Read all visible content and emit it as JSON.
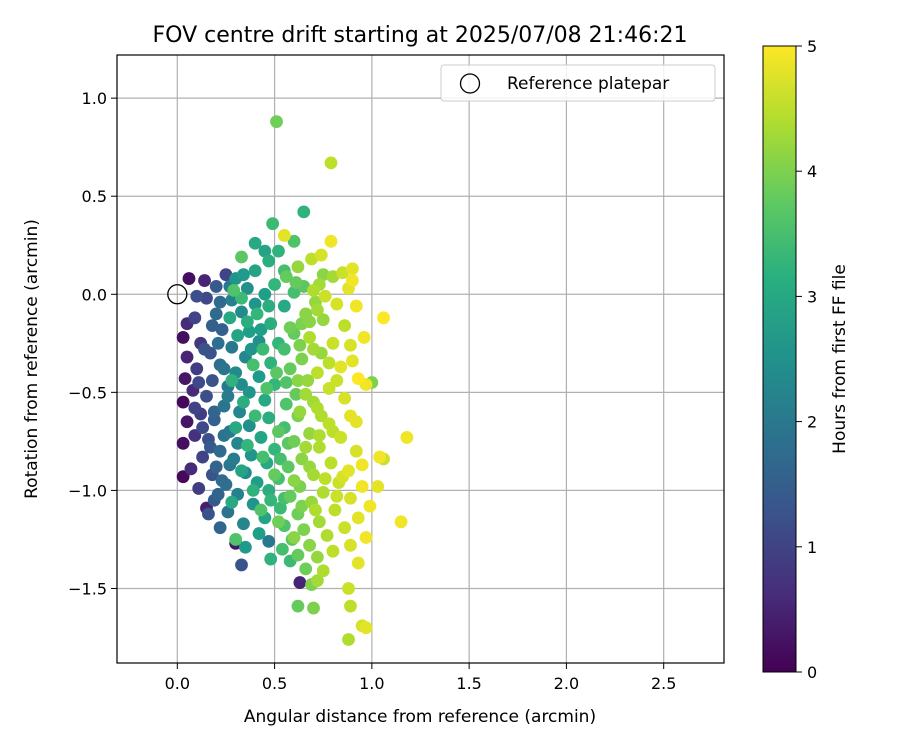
{
  "chart_data": {
    "type": "scatter",
    "title": "FOV centre drift starting at 2025/07/08 21:46:21",
    "xlabel": "Angular distance from reference (arcmin)",
    "ylabel": "Rotation from reference (arcmin)",
    "xlim": [
      -0.31,
      2.81
    ],
    "ylim": [
      -1.88,
      1.22
    ],
    "xticks": [
      0.0,
      0.5,
      1.0,
      1.5,
      2.0,
      2.5
    ],
    "xtick_labels": [
      "0.0",
      "0.5",
      "1.0",
      "1.5",
      "2.0",
      "2.5"
    ],
    "yticks": [
      -1.5,
      -1.0,
      -0.5,
      0.0,
      0.5,
      1.0
    ],
    "ytick_labels": [
      "−1.5",
      "−1.0",
      "−0.5",
      "0.0",
      "0.5",
      "1.0"
    ],
    "grid": true,
    "colormap": "viridis",
    "colorbar": {
      "label": "Hours from first FF file",
      "range": [
        0,
        5
      ],
      "ticks": [
        0,
        1,
        2,
        3,
        4,
        5
      ],
      "tick_labels": [
        "0",
        "1",
        "2",
        "3",
        "4",
        "5"
      ]
    },
    "legend": {
      "position": "top-right",
      "entries": [
        {
          "label": "Reference platepar",
          "marker": "open-circle"
        }
      ]
    },
    "reference_point": {
      "x": 0.0,
      "y": 0.0
    },
    "points_xyc": [
      [
        0.51,
        0.88,
        3.9
      ],
      [
        0.79,
        0.67,
        4.5
      ],
      [
        0.65,
        0.42,
        3.2
      ],
      [
        0.49,
        0.36,
        3.4
      ],
      [
        0.55,
        0.3,
        4.8
      ],
      [
        0.6,
        0.27,
        3.6
      ],
      [
        0.4,
        0.26,
        3.0
      ],
      [
        0.79,
        0.27,
        4.9
      ],
      [
        0.45,
        0.22,
        2.9
      ],
      [
        0.52,
        0.22,
        3.2
      ],
      [
        0.74,
        0.2,
        4.7
      ],
      [
        0.69,
        0.18,
        4.5
      ],
      [
        0.33,
        0.19,
        3.7
      ],
      [
        0.62,
        0.14,
        4.2
      ],
      [
        0.9,
        0.13,
        4.8
      ],
      [
        0.85,
        0.11,
        4.6
      ],
      [
        0.75,
        0.1,
        4.1
      ],
      [
        0.8,
        0.09,
        4.3
      ],
      [
        0.3,
        0.08,
        2.6
      ],
      [
        0.56,
        0.09,
        3.8
      ],
      [
        0.25,
        0.1,
        1.0
      ],
      [
        0.06,
        0.08,
        0.2
      ],
      [
        0.14,
        0.07,
        0.5
      ],
      [
        0.9,
        0.07,
        4.9
      ],
      [
        0.65,
        0.04,
        3.7
      ],
      [
        0.88,
        0.03,
        4.8
      ],
      [
        0.5,
        0.05,
        3.3
      ],
      [
        0.7,
        0.02,
        4.4
      ],
      [
        0.36,
        0.03,
        2.5
      ],
      [
        0.2,
        0.04,
        1.4
      ],
      [
        0.45,
        0.0,
        2.8
      ],
      [
        0.6,
        0.01,
        3.5
      ],
      [
        0.76,
        -0.01,
        4.6
      ],
      [
        0.1,
        -0.01,
        1.2
      ],
      [
        0.15,
        -0.02,
        1.1
      ],
      [
        0.82,
        -0.05,
        4.7
      ],
      [
        0.28,
        -0.03,
        2.2
      ],
      [
        0.4,
        -0.05,
        2.6
      ],
      [
        0.55,
        -0.06,
        3.0
      ],
      [
        0.92,
        -0.06,
        4.9
      ],
      [
        0.72,
        -0.08,
        4.3
      ],
      [
        0.66,
        -0.1,
        4.1
      ],
      [
        0.33,
        -0.09,
        2.4
      ],
      [
        0.2,
        -0.1,
        1.7
      ],
      [
        0.09,
        -0.12,
        1.0
      ],
      [
        0.05,
        -0.15,
        0.6
      ],
      [
        0.75,
        -0.13,
        4.2
      ],
      [
        1.06,
        -0.12,
        5.0
      ],
      [
        0.48,
        -0.15,
        3.1
      ],
      [
        0.86,
        -0.16,
        4.5
      ],
      [
        0.23,
        -0.18,
        1.5
      ],
      [
        0.37,
        -0.19,
        2.8
      ],
      [
        0.6,
        -0.2,
        3.8
      ],
      [
        0.03,
        -0.22,
        0.2
      ],
      [
        0.68,
        -0.22,
        4.4
      ],
      [
        0.12,
        -0.25,
        0.8
      ],
      [
        0.42,
        -0.24,
        2.5
      ],
      [
        0.8,
        -0.25,
        4.6
      ],
      [
        0.28,
        -0.27,
        2.0
      ],
      [
        0.89,
        -0.26,
        4.7
      ],
      [
        0.55,
        -0.28,
        3.5
      ],
      [
        0.17,
        -0.3,
        1.3
      ],
      [
        0.74,
        -0.3,
        4.2
      ],
      [
        0.05,
        -0.32,
        0.5
      ],
      [
        0.35,
        -0.32,
        2.3
      ],
      [
        0.64,
        -0.33,
        4.0
      ],
      [
        0.48,
        -0.35,
        3.2
      ],
      [
        0.22,
        -0.36,
        1.8
      ],
      [
        0.84,
        -0.37,
        4.8
      ],
      [
        0.1,
        -0.38,
        0.9
      ],
      [
        0.58,
        -0.38,
        3.8
      ],
      [
        0.3,
        -0.4,
        2.4
      ],
      [
        0.72,
        -0.4,
        4.5
      ],
      [
        0.42,
        -0.42,
        2.7
      ],
      [
        0.04,
        -0.43,
        0.3
      ],
      [
        0.93,
        -0.43,
        5.0
      ],
      [
        0.18,
        -0.44,
        1.3
      ],
      [
        0.62,
        -0.44,
        4.1
      ],
      [
        1.0,
        -0.45,
        4.0
      ],
      [
        0.97,
        -0.46,
        4.9
      ],
      [
        0.5,
        -0.46,
        3.3
      ],
      [
        0.26,
        -0.47,
        2.0
      ],
      [
        0.78,
        -0.48,
        4.6
      ],
      [
        0.08,
        -0.49,
        0.6
      ],
      [
        0.37,
        -0.5,
        2.6
      ],
      [
        0.66,
        -0.51,
        4.3
      ],
      [
        0.15,
        -0.52,
        1.2
      ],
      [
        0.86,
        -0.53,
        4.7
      ],
      [
        0.45,
        -0.54,
        3.0
      ],
      [
        0.03,
        -0.55,
        0.1
      ],
      [
        0.56,
        -0.56,
        3.6
      ],
      [
        0.24,
        -0.57,
        1.9
      ],
      [
        0.72,
        -0.58,
        4.4
      ],
      [
        0.32,
        -0.6,
        2.3
      ],
      [
        0.12,
        -0.61,
        0.9
      ],
      [
        0.62,
        -0.62,
        4.0
      ],
      [
        0.89,
        -0.62,
        4.8
      ],
      [
        0.47,
        -0.63,
        3.1
      ],
      [
        0.19,
        -0.64,
        1.5
      ],
      [
        0.05,
        -0.65,
        0.3
      ],
      [
        0.78,
        -0.66,
        4.5
      ],
      [
        0.37,
        -0.67,
        2.5
      ],
      [
        0.55,
        -0.68,
        3.5
      ],
      [
        0.27,
        -0.7,
        2.0
      ],
      [
        0.68,
        -0.71,
        4.2
      ],
      [
        0.09,
        -0.72,
        0.7
      ],
      [
        0.43,
        -0.73,
        2.9
      ],
      [
        0.84,
        -0.73,
        4.6
      ],
      [
        0.16,
        -0.74,
        1.2
      ],
      [
        0.6,
        -0.75,
        3.9
      ],
      [
        0.31,
        -0.76,
        2.3
      ],
      [
        0.03,
        -0.76,
        0.2
      ],
      [
        1.18,
        -0.73,
        4.9
      ],
      [
        0.73,
        -0.78,
        4.4
      ],
      [
        0.5,
        -0.79,
        3.3
      ],
      [
        0.22,
        -0.8,
        1.7
      ],
      [
        0.92,
        -0.8,
        4.7
      ],
      [
        0.38,
        -0.82,
        2.6
      ],
      [
        0.13,
        -0.83,
        1.0
      ],
      [
        0.64,
        -0.84,
        4.1
      ],
      [
        1.04,
        -0.83,
        4.9
      ],
      [
        1.06,
        -0.84,
        4.6
      ],
      [
        0.46,
        -0.86,
        3.0
      ],
      [
        0.79,
        -0.86,
        4.5
      ],
      [
        0.27,
        -0.87,
        2.0
      ],
      [
        0.57,
        -0.88,
        3.7
      ],
      [
        0.07,
        -0.89,
        0.6
      ],
      [
        0.88,
        -0.9,
        4.8
      ],
      [
        0.35,
        -0.91,
        2.4
      ],
      [
        0.18,
        -0.92,
        1.3
      ],
      [
        0.7,
        -0.92,
        4.3
      ],
      [
        0.03,
        -0.93,
        0.1
      ],
      [
        0.52,
        -0.94,
        3.5
      ],
      [
        0.41,
        -0.96,
        2.8
      ],
      [
        0.83,
        -0.96,
        4.6
      ],
      [
        0.25,
        -0.97,
        1.8
      ],
      [
        0.63,
        -0.98,
        4.0
      ],
      [
        0.95,
        -0.98,
        4.9
      ],
      [
        1.03,
        -0.98,
        4.8
      ],
      [
        0.11,
        -0.99,
        0.9
      ],
      [
        0.47,
        -1.0,
        3.1
      ],
      [
        0.75,
        -1.01,
        4.4
      ],
      [
        0.31,
        -1.02,
        2.2
      ],
      [
        0.58,
        -1.03,
        3.8
      ],
      [
        0.89,
        -1.04,
        4.7
      ],
      [
        0.19,
        -1.05,
        1.4
      ],
      [
        0.69,
        -1.06,
        4.2
      ],
      [
        0.39,
        -1.07,
        2.6
      ],
      [
        0.99,
        -1.08,
        4.9
      ],
      [
        0.53,
        -1.09,
        3.4
      ],
      [
        0.15,
        -1.09,
        0.4
      ],
      [
        0.81,
        -1.1,
        4.5
      ],
      [
        0.26,
        -1.11,
        1.9
      ],
      [
        0.16,
        -1.12,
        1.3
      ],
      [
        0.62,
        -1.12,
        3.9
      ],
      [
        0.45,
        -1.14,
        2.9
      ],
      [
        0.93,
        -1.14,
        4.8
      ],
      [
        0.73,
        -1.16,
        4.3
      ],
      [
        0.34,
        -1.17,
        2.3
      ],
      [
        1.15,
        -1.16,
        4.9
      ],
      [
        0.55,
        -1.18,
        3.6
      ],
      [
        0.86,
        -1.19,
        4.6
      ],
      [
        0.22,
        -1.19,
        1.6
      ],
      [
        0.65,
        -1.2,
        4.0
      ],
      [
        0.42,
        -1.22,
        2.8
      ],
      [
        0.77,
        -1.23,
        4.4
      ],
      [
        0.97,
        -1.24,
        4.9
      ],
      [
        0.3,
        -1.25,
        3.6
      ],
      [
        0.59,
        -1.25,
        3.7
      ],
      [
        0.47,
        -1.26,
        2.0
      ],
      [
        0.3,
        -1.27,
        0.3
      ],
      [
        0.68,
        -1.28,
        4.1
      ],
      [
        0.89,
        -1.28,
        4.7
      ],
      [
        0.35,
        -1.29,
        2.7
      ],
      [
        0.54,
        -1.3,
        3.5
      ],
      [
        0.8,
        -1.31,
        4.5
      ],
      [
        0.62,
        -1.33,
        3.8
      ],
      [
        0.72,
        -1.34,
        4.2
      ],
      [
        0.48,
        -1.35,
        3.2
      ],
      [
        0.58,
        -1.36,
        3.4
      ],
      [
        0.93,
        -1.37,
        4.8
      ],
      [
        0.33,
        -1.38,
        1.3
      ],
      [
        0.66,
        -1.4,
        3.9
      ],
      [
        0.75,
        -1.41,
        4.4
      ],
      [
        0.63,
        -1.47,
        0.5
      ],
      [
        0.69,
        -1.48,
        4.0
      ],
      [
        0.72,
        -1.46,
        4.3
      ],
      [
        0.88,
        -1.5,
        4.6
      ],
      [
        0.62,
        -1.59,
        3.8
      ],
      [
        0.7,
        -1.6,
        4.0
      ],
      [
        0.89,
        -1.59,
        4.5
      ],
      [
        0.95,
        -1.69,
        4.7
      ],
      [
        0.97,
        -1.7,
        4.8
      ],
      [
        0.88,
        -1.76,
        4.4
      ],
      [
        0.29,
        0.02,
        3.6
      ],
      [
        0.33,
        -0.02,
        3.4
      ],
      [
        0.41,
        -0.1,
        3.3
      ],
      [
        0.27,
        -0.12,
        3.0
      ],
      [
        0.36,
        -0.14,
        3.1
      ],
      [
        0.44,
        -0.28,
        3.4
      ],
      [
        0.31,
        -0.21,
        2.9
      ],
      [
        0.39,
        -0.36,
        3.5
      ],
      [
        0.28,
        -0.44,
        3.2
      ],
      [
        0.46,
        -0.48,
        3.6
      ],
      [
        0.34,
        -0.55,
        3.1
      ],
      [
        0.4,
        -0.62,
        3.4
      ],
      [
        0.3,
        -0.68,
        3.0
      ],
      [
        0.52,
        -0.7,
        3.7
      ],
      [
        0.36,
        -0.77,
        3.3
      ],
      [
        0.44,
        -0.83,
        3.5
      ],
      [
        0.33,
        -0.9,
        2.9
      ],
      [
        0.5,
        -0.92,
        3.8
      ],
      [
        0.39,
        -1.0,
        3.2
      ],
      [
        0.28,
        -1.06,
        3.0
      ],
      [
        0.43,
        -1.1,
        3.6
      ],
      [
        0.52,
        -1.16,
        3.9
      ],
      [
        0.58,
        -0.17,
        3.9
      ],
      [
        0.51,
        -0.4,
        3.7
      ],
      [
        0.7,
        -0.55,
        4.3
      ],
      [
        0.63,
        -0.6,
        4.2
      ],
      [
        0.66,
        -0.78,
        4.3
      ],
      [
        0.6,
        -0.95,
        4.1
      ],
      [
        0.76,
        -0.94,
        4.5
      ],
      [
        0.82,
        -1.03,
        4.6
      ],
      [
        0.71,
        -1.1,
        4.4
      ],
      [
        0.6,
        -1.24,
        4.1
      ],
      [
        0.8,
        -0.7,
        4.5
      ],
      [
        0.74,
        -0.62,
        4.4
      ],
      [
        0.82,
        -0.44,
        4.6
      ],
      [
        0.9,
        -0.34,
        4.8
      ],
      [
        0.96,
        -0.22,
        4.9
      ],
      [
        0.92,
        -0.65,
        4.8
      ],
      [
        0.95,
        -0.87,
        4.9
      ],
      [
        0.85,
        -0.93,
        4.7
      ],
      [
        0.78,
        -0.35,
        4.5
      ],
      [
        0.7,
        -0.28,
        4.3
      ],
      [
        0.64,
        -0.15,
        4.0
      ],
      [
        0.71,
        -0.04,
        4.2
      ],
      [
        0.61,
        0.06,
        3.8
      ],
      [
        0.55,
        0.12,
        3.5
      ],
      [
        0.47,
        0.17,
        3.1
      ],
      [
        0.4,
        0.12,
        2.9
      ],
      [
        0.34,
        0.1,
        2.7
      ],
      [
        0.27,
        0.04,
        2.0
      ],
      [
        0.22,
        -0.04,
        1.7
      ],
      [
        0.18,
        -0.16,
        1.5
      ],
      [
        0.14,
        -0.28,
        1.3
      ],
      [
        0.11,
        -0.45,
        1.1
      ],
      [
        0.09,
        -0.58,
        1.0
      ],
      [
        0.13,
        -0.68,
        1.1
      ],
      [
        0.17,
        -0.78,
        1.4
      ],
      [
        0.2,
        -0.88,
        1.6
      ],
      [
        0.23,
        -0.95,
        1.7
      ],
      [
        0.21,
        -1.02,
        1.6
      ],
      [
        0.26,
        -0.52,
        2.1
      ],
      [
        0.24,
        -0.38,
        1.9
      ],
      [
        0.21,
        -0.25,
        1.8
      ],
      [
        0.19,
        -0.6,
        1.6
      ],
      [
        0.24,
        -0.72,
        1.9
      ],
      [
        0.29,
        -0.84,
        2.1
      ],
      [
        0.33,
        -0.46,
        2.4
      ],
      [
        0.38,
        -0.28,
        2.6
      ],
      [
        0.43,
        -0.18,
        2.8
      ],
      [
        0.47,
        -0.06,
        3.1
      ],
      [
        0.52,
        -0.25,
        3.3
      ],
      [
        0.56,
        -0.45,
        3.6
      ],
      [
        0.61,
        -0.51,
        3.8
      ],
      [
        0.57,
        -0.76,
        3.7
      ],
      [
        0.53,
        -0.84,
        3.5
      ],
      [
        0.48,
        -1.05,
        3.3
      ],
      [
        0.55,
        -1.04,
        3.5
      ],
      [
        0.64,
        -1.08,
        4.0
      ],
      [
        0.68,
        -0.88,
        4.2
      ],
      [
        0.73,
        -0.72,
        4.4
      ],
      [
        0.67,
        -0.44,
        4.2
      ],
      [
        0.63,
        -0.26,
        4.0
      ],
      [
        0.68,
        -0.14,
        4.1
      ],
      [
        0.73,
        0.05,
        4.3
      ]
    ]
  }
}
